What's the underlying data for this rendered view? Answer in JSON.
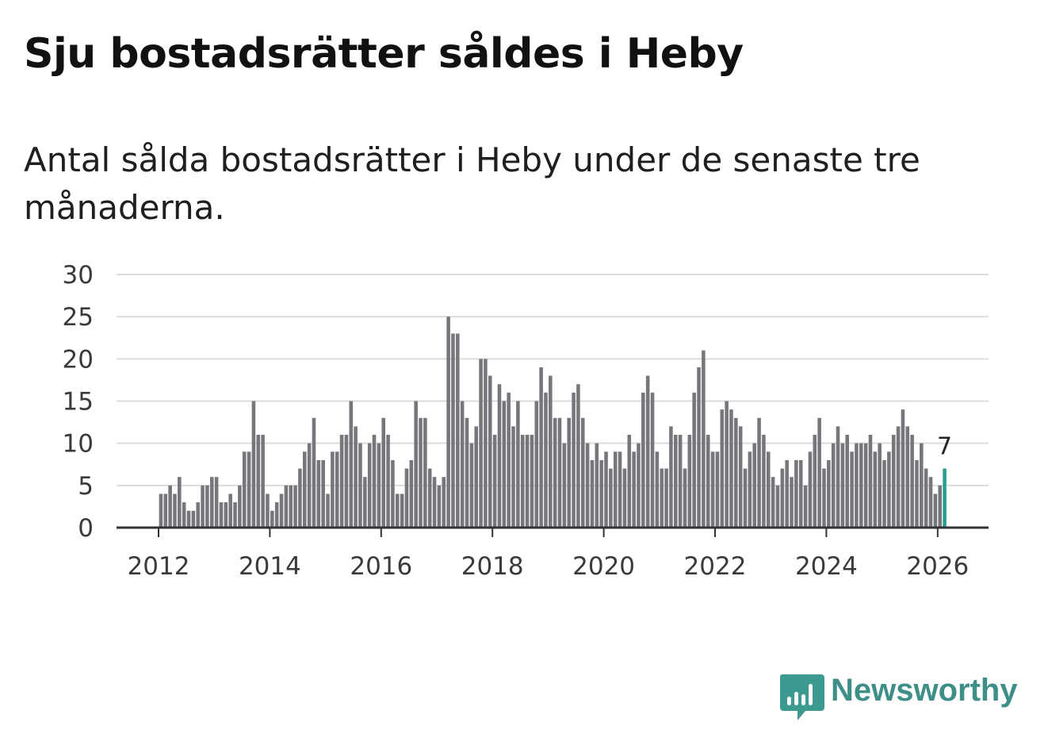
{
  "header": {
    "title": "Sju bostadsrätter såldes i Heby",
    "subtitle": "Antal sålda bostadsrätter i Heby under de senaste tre månaderna."
  },
  "brand": {
    "name": "Newsworthy",
    "color": "#3d9a90",
    "icon": "bar-chart-speech-bubble-icon"
  },
  "colors": {
    "bar": "#77767b",
    "highlight": "#2a9d8f",
    "grid": "#dcdcdc",
    "axis": "#333333"
  },
  "chart_data": {
    "type": "bar",
    "title": "Sju bostadsrätter såldes i Heby",
    "subtitle": "Antal sålda bostadsrätter i Heby under de senaste tre månaderna.",
    "xlabel": "",
    "ylabel": "",
    "ylim": [
      0,
      30
    ],
    "yticks": [
      0,
      5,
      10,
      15,
      20,
      25,
      30
    ],
    "xlim": [
      2011.25,
      2026.9
    ],
    "xticks": [
      2012,
      2014,
      2016,
      2018,
      2020,
      2022,
      2024,
      2026
    ],
    "xtick_labels": [
      "2012",
      "2014",
      "2016",
      "2018",
      "2020",
      "2022",
      "2024",
      "2026"
    ],
    "start": {
      "year": 2012,
      "month": 1
    },
    "frequency": "monthly (rolling 3-month total)",
    "values": [
      4,
      4,
      5,
      4,
      6,
      3,
      2,
      2,
      3,
      5,
      5,
      6,
      6,
      3,
      3,
      4,
      3,
      5,
      9,
      9,
      15,
      11,
      11,
      4,
      2,
      3,
      4,
      5,
      5,
      5,
      7,
      9,
      10,
      13,
      8,
      8,
      4,
      9,
      9,
      11,
      11,
      15,
      12,
      10,
      6,
      10,
      11,
      10,
      13,
      11,
      8,
      4,
      4,
      7,
      8,
      15,
      13,
      13,
      7,
      6,
      5,
      6,
      25,
      23,
      23,
      15,
      13,
      10,
      12,
      20,
      20,
      18,
      11,
      17,
      15,
      16,
      12,
      15,
      11,
      11,
      11,
      15,
      19,
      16,
      18,
      13,
      13,
      10,
      13,
      16,
      17,
      13,
      10,
      8,
      10,
      8,
      9,
      7,
      9,
      9,
      7,
      11,
      9,
      10,
      16,
      18,
      16,
      9,
      7,
      7,
      12,
      11,
      11,
      7,
      11,
      16,
      19,
      21,
      11,
      9,
      9,
      14,
      15,
      14,
      13,
      12,
      7,
      9,
      10,
      13,
      11,
      9,
      6,
      5,
      7,
      8,
      6,
      8,
      8,
      5,
      9,
      11,
      13,
      7,
      8,
      10,
      12,
      10,
      11,
      9,
      10,
      10,
      10,
      11,
      9,
      10,
      8,
      9,
      11,
      12,
      14,
      12,
      11,
      8,
      10,
      7,
      6,
      4,
      5,
      7
    ],
    "highlight_last": true,
    "annotation": {
      "label": "7",
      "value": 7
    }
  }
}
